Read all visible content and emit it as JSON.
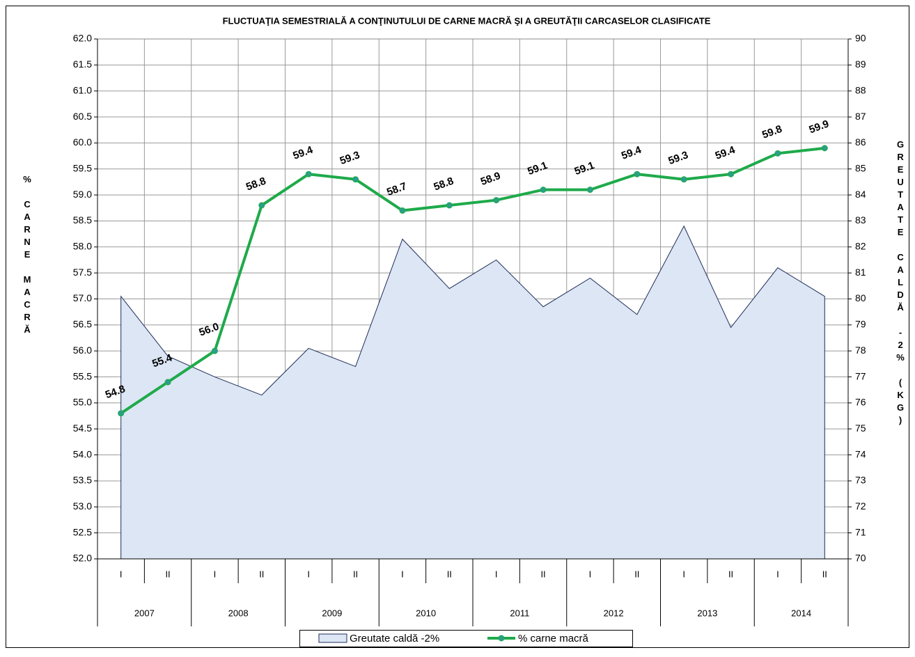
{
  "chart_data": {
    "type": "line",
    "title": "FLUCTUAŢIA SEMESTRIALĂ  A CONŢINUTULUI DE CARNE MACRĂ ŞI A GREUTĂŢII CARCASELOR CLASIFICATE",
    "ylabel": "% CARNE MACRĂ",
    "y2label": "GREUTATE CALDĂ -2% (KG)",
    "categories": [
      "I",
      "II",
      "I",
      "II",
      "I",
      "II",
      "I",
      "II",
      "I",
      "II",
      "I",
      "II",
      "I",
      "II",
      "I",
      "II"
    ],
    "category_groups": [
      "2007",
      "2008",
      "2009",
      "2010",
      "2011",
      "2012",
      "2013",
      "2014"
    ],
    "ylim": [
      52,
      62
    ],
    "yticks": [
      {
        "value": 52,
        "label": "52.0"
      },
      52.5,
      {
        "value": 53,
        "label": "53.0"
      },
      53.5,
      {
        "value": 54,
        "label": "54.0"
      },
      54.5,
      {
        "value": 55,
        "label": "55.0"
      },
      55.5,
      {
        "value": 56,
        "label": "56.0"
      },
      56.5,
      {
        "value": 57,
        "label": "57.0"
      },
      57.5,
      {
        "value": 58,
        "label": "58.0"
      },
      58.5,
      {
        "value": 59,
        "label": "59.0"
      },
      59.5,
      {
        "value": 60,
        "label": "60.0"
      },
      60.5,
      {
        "value": 61,
        "label": "61.0"
      },
      61.5,
      {
        "value": 62,
        "label": "62.0"
      }
    ],
    "y2lim": [
      70,
      90
    ],
    "y2ticks": [
      70,
      71,
      72,
      73,
      74,
      75,
      76,
      77,
      78,
      79,
      80,
      81,
      82,
      83,
      84,
      85,
      86,
      87,
      88,
      89,
      90
    ],
    "grid": true,
    "legend": "bottom",
    "series": [
      {
        "name": "Greutate caldă -2%",
        "kind": "area",
        "axis": "y2",
        "color": "#dce6f4",
        "edge_color": "#1f2d5a",
        "values": [
          80.1,
          77.8,
          77.0,
          76.3,
          78.1,
          77.4,
          82.3,
          80.4,
          81.5,
          79.7,
          80.8,
          79.4,
          82.8,
          78.9,
          81.2,
          80.1
        ]
      },
      {
        "name": "% carne macră",
        "kind": "line",
        "color": "#1eaa4a",
        "values": [
          54.8,
          55.4,
          56.0,
          58.8,
          59.4,
          59.3,
          58.7,
          58.8,
          58.9,
          59.1,
          59.1,
          59.4,
          59.3,
          59.4,
          59.8,
          59.9
        ],
        "value_labels": [
          "54.8",
          "55.4",
          "56.0",
          "58.8",
          "59.4",
          "59.3",
          "58.7",
          "58.8",
          "58.9",
          "59.1",
          "59.1",
          "59.4",
          "59.3",
          "59.4",
          "59.8",
          "59.9"
        ]
      }
    ]
  }
}
